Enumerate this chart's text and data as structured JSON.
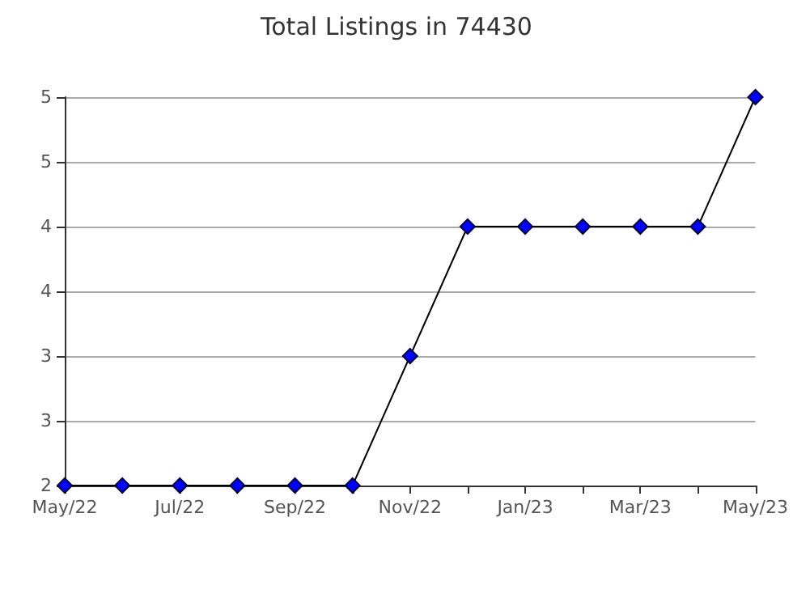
{
  "chart_data": {
    "type": "line",
    "title": "Total Listings in 74430",
    "categories": [
      "May/22",
      null,
      "Jul/22",
      null,
      "Sep/22",
      null,
      "Nov/22",
      null,
      "Jan/23",
      null,
      "Mar/23",
      null,
      "May/23"
    ],
    "series": [
      {
        "color": "#0000ff",
        "values": [
          2,
          2,
          2,
          2,
          2,
          2,
          3,
          4,
          4,
          4,
          4,
          4,
          5
        ]
      }
    ],
    "ylim": [
      2,
      5
    ],
    "yticks": [
      2,
      {
        "value": 2.5,
        "label": "3"
      },
      3,
      {
        "value": 3.5,
        "label": "4"
      },
      4,
      {
        "value": 4.5,
        "label": "5"
      },
      5
    ],
    "grid": "y",
    "marker": "diamond",
    "line_style": "solid"
  }
}
